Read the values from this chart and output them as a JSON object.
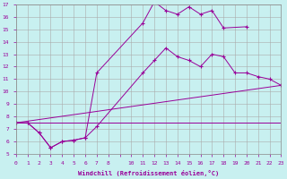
{
  "xlabel": "Windchill (Refroidissement éolien,°C)",
  "background_color": "#c8f0f0",
  "line_color": "#990099",
  "grid_color": "#aaaaaa",
  "xlim": [
    0,
    23
  ],
  "ylim": [
    5,
    17
  ],
  "yticks": [
    5,
    6,
    7,
    8,
    9,
    10,
    11,
    12,
    13,
    14,
    15,
    16,
    17
  ],
  "xtick_labels": [
    "0",
    "1",
    "2",
    "3",
    "4",
    "5",
    "6",
    "7",
    "8",
    "",
    "10",
    "11",
    "12",
    "13",
    "14",
    "15",
    "16",
    "17",
    "18",
    "19",
    "20",
    "21",
    "22",
    "23"
  ],
  "curve1_x": [
    0,
    1,
    2,
    3,
    4,
    5,
    6,
    7,
    11,
    12,
    13,
    14,
    15,
    16,
    17,
    18,
    20
  ],
  "curve1_y": [
    7.5,
    7.5,
    6.7,
    5.5,
    6.0,
    6.1,
    6.3,
    11.5,
    15.5,
    17.2,
    16.5,
    16.2,
    16.8,
    16.2,
    16.5,
    15.1,
    15.2
  ],
  "curve2_x": [
    0,
    1,
    2,
    3,
    4,
    5,
    6,
    7,
    11,
    12,
    13,
    14,
    15,
    16,
    17,
    18,
    19,
    20,
    21,
    22,
    23
  ],
  "curve2_y": [
    7.5,
    7.5,
    6.7,
    5.5,
    6.0,
    6.1,
    6.3,
    7.2,
    11.5,
    12.5,
    13.5,
    12.8,
    12.5,
    12.0,
    13.0,
    12.8,
    11.5,
    11.5,
    11.2,
    11.0,
    10.5
  ],
  "line3_x": [
    0,
    23
  ],
  "line3_y": [
    7.5,
    10.5
  ],
  "line4_x": [
    0,
    23
  ],
  "line4_y": [
    7.5,
    7.5
  ]
}
